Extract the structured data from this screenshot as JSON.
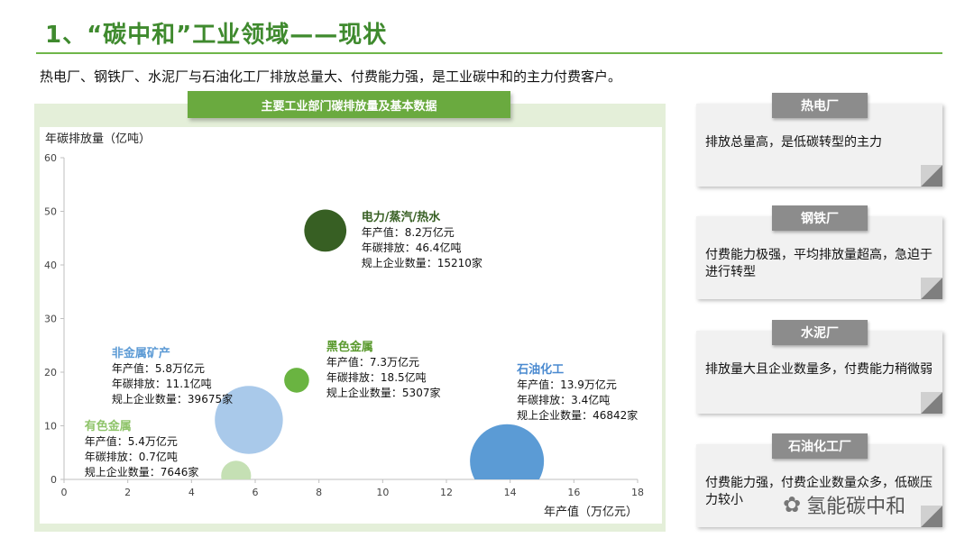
{
  "page": {
    "title": "1、“碳中和”工业领域——现状",
    "subtitle": "热电厂、钢铁厂、水泥厂与石油化工厂排放总量大、付费能力强，是工业碳中和的主力付费客户。"
  },
  "chart_header": "主要工业部门碳排放量及基本数据",
  "chart_data": {
    "type": "scatter",
    "xlabel": "年产值（万亿元）",
    "ylabel": "年碳排放量（亿吨）",
    "xlim": [
      0,
      18
    ],
    "ylim": [
      0,
      60
    ],
    "x_ticks": [
      "0",
      "2",
      "4",
      "6",
      "8",
      "10",
      "12",
      "14",
      "16",
      "18"
    ],
    "y_ticks": [
      "0",
      "10",
      "20",
      "30",
      "40",
      "50",
      "60"
    ],
    "grid": false,
    "points": [
      {
        "name": "电力/蒸汽/热水",
        "x": 8.2,
        "y": 46.4,
        "size": 15210,
        "color": "#375f23",
        "name_color": "#375f23",
        "lines": [
          "年产值：8.2万亿元",
          "年碳排放：46.4亿吨",
          "规上企业数量：15210家"
        ]
      },
      {
        "name": "非金属矿产",
        "x": 5.8,
        "y": 11.1,
        "size": 39675,
        "color": "#a9c9ea",
        "name_color": "#5d9bd5",
        "lines": [
          "年产值：5.8万亿元",
          "年碳排放：11.1亿吨",
          "规上企业数量：39675家"
        ]
      },
      {
        "name": "黑色金属",
        "x": 7.3,
        "y": 18.5,
        "size": 5307,
        "color": "#6ab441",
        "name_color": "#5a9a2e",
        "lines": [
          "年产值：7.3万亿元",
          "年碳排放：18.5亿吨",
          "规上企业数量：5307家"
        ]
      },
      {
        "name": "石油化工",
        "x": 13.9,
        "y": 3.4,
        "size": 46842,
        "color": "#5b9bd5",
        "name_color": "#4a8ad0",
        "lines": [
          "年产值：13.9万亿元",
          "年碳排放：3.4亿吨",
          "规上企业数量：46842家"
        ]
      },
      {
        "name": "有色金属",
        "x": 5.4,
        "y": 0.7,
        "size": 7646,
        "color": "#c5e0b4",
        "name_color": "#8fc46a",
        "lines": [
          "年产值：5.4万亿元",
          "年碳排放：0.7亿吨",
          "规上企业数量：7646家"
        ]
      }
    ]
  },
  "cards": [
    {
      "tab": "热电厂",
      "text": "排放总量高，是低碳转型的主力"
    },
    {
      "tab": "钢铁厂",
      "text": "付费能力极强，平均排放量超高，急迫于进行转型"
    },
    {
      "tab": "水泥厂",
      "text": "排放量大且企业数量多，付费能力稍微弱"
    },
    {
      "tab": "石油化工厂",
      "text": "付费能力强，付费企业数量众多，低碳压力较小"
    }
  ],
  "watermark": {
    "text": "氢能碳中和",
    "icon": "wechat-icon"
  }
}
